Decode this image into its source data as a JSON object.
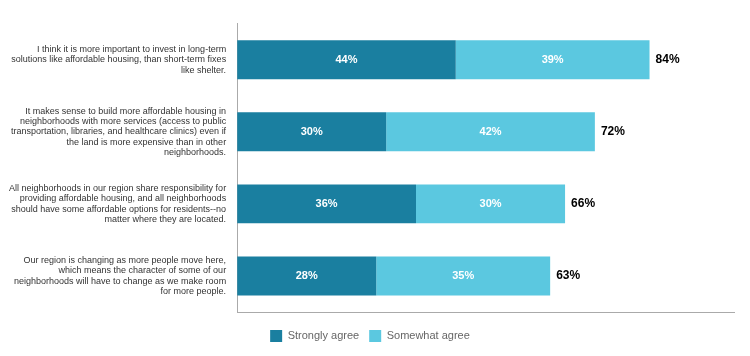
{
  "chart_data": {
    "type": "bar",
    "orientation": "horizontal",
    "stacked": true,
    "categories": [
      "I think it is more important to invest in long-term\nsolutions like affordable housing, than short-term fixes\nlike shelter.",
      "It makes sense to build more affordable housing in\nneighborhoods with more services (access to public\ntransportation, libraries, and healthcare clinics) even if\nthe land is more expensive than in other\nneighborhoods.",
      "All neighborhoods in our region share responsibility for\nproviding affordable housing, and all neighborhoods\nshould have some affordable options for residents--no\nmatter where they are located.",
      "Our region is changing as more people move here,\nwhich means the character of some of our\nneighborhoods will have to change as we make room\nfor more people."
    ],
    "series": [
      {
        "name": "Strongly agree",
        "color": "#1a7fa0",
        "values": [
          44,
          30,
          36,
          28
        ],
        "value_labels": [
          "44%",
          "30%",
          "36%",
          "28%"
        ]
      },
      {
        "name": "Somewhat agree",
        "color": "#5bc8e0",
        "values": [
          39,
          42,
          30,
          35
        ],
        "value_labels": [
          "39%",
          "42%",
          "30%",
          "35%"
        ]
      }
    ],
    "totals": [
      84,
      72,
      66,
      63
    ],
    "total_labels": [
      "84%",
      "72%",
      "66%",
      "63%"
    ],
    "xlim": [
      0,
      100
    ],
    "tick_labels": "y",
    "data_labels": true,
    "grid": false,
    "legend": "bottom"
  }
}
